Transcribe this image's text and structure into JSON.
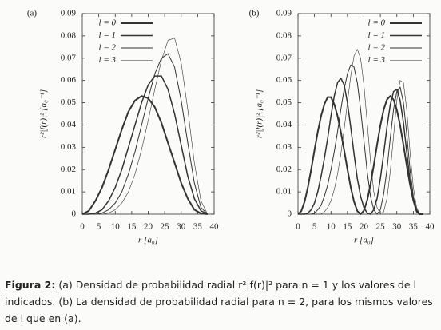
{
  "chart_data": [
    {
      "type": "line",
      "panel": "(a)",
      "x_label": "r [a₀]",
      "y_label": "r²|f(r)|² [a₀⁻¹]",
      "x": [
        0,
        2,
        4,
        6,
        8,
        10,
        12,
        14,
        16,
        18,
        20,
        22,
        24,
        26,
        28,
        30,
        32,
        34,
        36,
        38
      ],
      "series": [
        {
          "name": "l = 0",
          "color": "#333333",
          "width": 2,
          "values": [
            0,
            0.0015,
            0.006,
            0.012,
            0.02,
            0.029,
            0.038,
            0.046,
            0.051,
            0.053,
            0.052,
            0.048,
            0.041,
            0.032,
            0.023,
            0.014,
            0.007,
            0.002,
            0.0003,
            0
          ]
        },
        {
          "name": "l = 1",
          "color": "#333333",
          "width": 1.5,
          "values": [
            0,
            0,
            0.0005,
            0.002,
            0.006,
            0.012,
            0.02,
            0.03,
            0.04,
            0.05,
            0.058,
            0.062,
            0.062,
            0.056,
            0.045,
            0.031,
            0.017,
            0.007,
            0.0015,
            0
          ]
        },
        {
          "name": "l = 2",
          "color": "#333333",
          "width": 1,
          "values": [
            0,
            0,
            0,
            0.0005,
            0.002,
            0.005,
            0.01,
            0.018,
            0.028,
            0.04,
            0.052,
            0.063,
            0.07,
            0.072,
            0.066,
            0.051,
            0.032,
            0.014,
            0.003,
            0
          ]
        },
        {
          "name": "l = 3",
          "color": "#333333",
          "width": 0.6,
          "values": [
            0,
            0,
            0,
            0,
            0.0005,
            0.002,
            0.005,
            0.01,
            0.018,
            0.029,
            0.042,
            0.056,
            0.069,
            0.078,
            0.079,
            0.068,
            0.047,
            0.023,
            0.006,
            0
          ]
        }
      ],
      "xlim": [
        0,
        40
      ],
      "xticks": [
        0,
        5,
        10,
        15,
        20,
        25,
        30,
        35,
        40
      ],
      "ylim": [
        0,
        0.09
      ],
      "yticks": [
        0,
        0.01,
        0.02,
        0.03,
        0.04,
        0.05,
        0.06,
        0.07,
        0.08,
        0.09
      ],
      "legend": "upper left"
    },
    {
      "type": "line",
      "panel": "(b)",
      "x_label": "r [a₀]",
      "y_label": "r²|f(r)|² [a₀⁻¹]",
      "x": [
        0,
        1,
        2,
        3,
        4,
        5,
        6,
        7,
        8,
        9,
        10,
        11,
        12,
        13,
        14,
        15,
        16,
        17,
        18,
        19,
        20,
        21,
        22,
        23,
        24,
        25,
        26,
        27,
        28,
        29,
        30,
        31,
        32,
        33,
        34,
        35,
        36,
        37,
        38
      ],
      "series": [
        {
          "name": "l = 0",
          "color": "#333333",
          "width": 2,
          "values": [
            0,
            0.0014,
            0.0056,
            0.0121,
            0.0201,
            0.0287,
            0.0369,
            0.044,
            0.0493,
            0.0525,
            0.0525,
            0.0493,
            0.044,
            0.0369,
            0.0287,
            0.0201,
            0.0121,
            0.0056,
            0.0014,
            0,
            0.0016,
            0.0062,
            0.0133,
            0.0219,
            0.0311,
            0.0398,
            0.0468,
            0.0514,
            0.053,
            0.0514,
            0.0468,
            0.0398,
            0.0311,
            0.0219,
            0.0133,
            0.0062,
            0.0016,
            0,
            0
          ]
        },
        {
          "name": "l = 1",
          "color": "#333333",
          "width": 1.5,
          "values": [
            0,
            0,
            0,
            0.0005,
            0.002,
            0.005,
            0.01,
            0.017,
            0.025,
            0.034,
            0.044,
            0.053,
            0.059,
            0.061,
            0.058,
            0.05,
            0.039,
            0.027,
            0.016,
            0.008,
            0.003,
            0.0005,
            0,
            0.002,
            0.007,
            0.016,
            0.027,
            0.039,
            0.049,
            0.055,
            0.056,
            0.051,
            0.041,
            0.028,
            0.015,
            0.006,
            0.001,
            0,
            0
          ]
        },
        {
          "name": "l = 2",
          "color": "#333333",
          "width": 1,
          "values": [
            0,
            0,
            0,
            0,
            0,
            0.0005,
            0.002,
            0.004,
            0.008,
            0.013,
            0.02,
            0.028,
            0.037,
            0.047,
            0.056,
            0.063,
            0.067,
            0.066,
            0.059,
            0.047,
            0.033,
            0.019,
            0.008,
            0.002,
            0,
            0.002,
            0.009,
            0.02,
            0.034,
            0.047,
            0.055,
            0.057,
            0.05,
            0.036,
            0.02,
            0.008,
            0.002,
            0,
            0
          ]
        },
        {
          "name": "l = 3",
          "color": "#333333",
          "width": 0.6,
          "values": [
            0,
            0,
            0,
            0,
            0,
            0,
            0,
            0,
            0.001,
            0.003,
            0.006,
            0.011,
            0.018,
            0.027,
            0.038,
            0.05,
            0.062,
            0.071,
            0.074,
            0.07,
            0.058,
            0.041,
            0.024,
            0.01,
            0.003,
            0.0003,
            0.001,
            0.007,
            0.019,
            0.035,
            0.051,
            0.06,
            0.059,
            0.047,
            0.028,
            0.012,
            0.003,
            0,
            0
          ]
        }
      ],
      "xlim": [
        0,
        40
      ],
      "xticks": [
        0,
        5,
        10,
        15,
        20,
        25,
        30,
        35,
        40
      ],
      "ylim": [
        0,
        0.09
      ],
      "yticks": [
        0,
        0.01,
        0.02,
        0.03,
        0.04,
        0.05,
        0.06,
        0.07,
        0.08,
        0.09
      ],
      "legend": "upper right"
    }
  ],
  "caption": {
    "label": "Figura 2:",
    "text": "(a) Densidad de probabilidad radial r²|f(r)|² para n = 1 y los valores de l indicados. (b) La densidad de probabilidad radial para n = 2, para los mismos valores de l que en (a)."
  }
}
